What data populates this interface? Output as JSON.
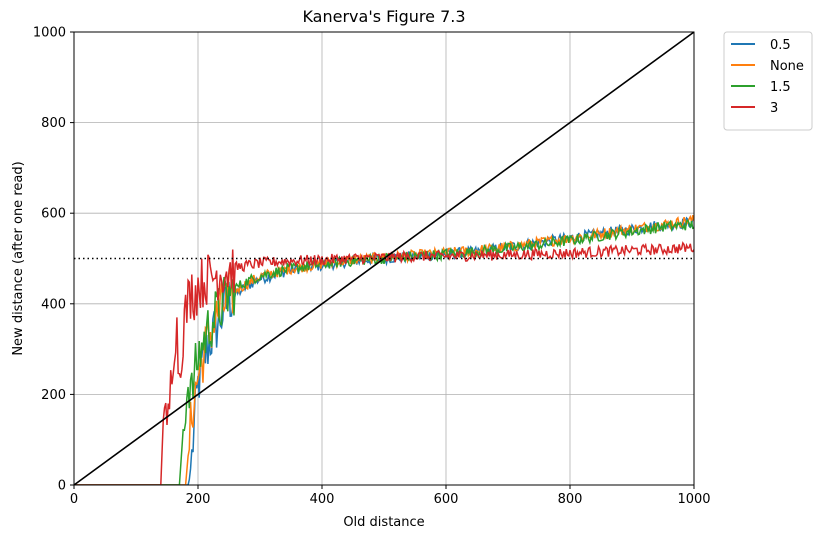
{
  "chart_data": {
    "type": "line",
    "title": "Kanerva's Figure 7.3",
    "xlabel": "Old distance",
    "ylabel": "New distance (after one read)",
    "xlim": [
      0,
      1000
    ],
    "ylim": [
      0,
      1000
    ],
    "xticks": [
      "0",
      "200",
      "400",
      "600",
      "800",
      "1000"
    ],
    "yticks": [
      "0",
      "200",
      "400",
      "600",
      "800",
      "1000"
    ],
    "grid": true,
    "legend_position": "outside-top-right",
    "reference_lines": [
      {
        "kind": "diagonal",
        "points": [
          [
            0,
            0
          ],
          [
            1000,
            1000
          ]
        ],
        "color": "#000000",
        "style": "solid"
      },
      {
        "kind": "horizontal",
        "y": 500,
        "color": "#000000",
        "style": "dotted"
      }
    ],
    "series": [
      {
        "name": "0.5",
        "color": "#1f77b4",
        "x": [
          0,
          150,
          185,
          190,
          195,
          200,
          205,
          210,
          215,
          220,
          230,
          240,
          250,
          260,
          280,
          300,
          350,
          400,
          450,
          500,
          550,
          600,
          650,
          700,
          750,
          800,
          850,
          900,
          950,
          1000
        ],
        "y": [
          0,
          0,
          0,
          60,
          150,
          220,
          250,
          280,
          300,
          320,
          350,
          380,
          410,
          420,
          440,
          455,
          475,
          485,
          495,
          500,
          505,
          510,
          515,
          525,
          535,
          545,
          555,
          565,
          575,
          580
        ]
      },
      {
        "name": "None",
        "color": "#ff7f0e",
        "x": [
          0,
          150,
          180,
          185,
          190,
          195,
          200,
          205,
          210,
          215,
          220,
          230,
          240,
          250,
          260,
          280,
          300,
          350,
          400,
          450,
          500,
          550,
          600,
          650,
          700,
          750,
          800,
          850,
          900,
          950,
          1000
        ],
        "y": [
          0,
          0,
          0,
          80,
          160,
          200,
          240,
          270,
          290,
          320,
          340,
          370,
          395,
          415,
          430,
          445,
          460,
          478,
          488,
          497,
          502,
          507,
          512,
          518,
          525,
          535,
          545,
          555,
          565,
          575,
          585
        ]
      },
      {
        "name": "1.5",
        "color": "#2ca02c",
        "x": [
          0,
          150,
          170,
          175,
          180,
          185,
          190,
          195,
          200,
          205,
          210,
          215,
          220,
          230,
          240,
          250,
          260,
          280,
          300,
          350,
          400,
          450,
          500,
          550,
          600,
          650,
          700,
          750,
          800,
          850,
          900,
          950,
          1000
        ],
        "y": [
          0,
          0,
          0,
          100,
          180,
          230,
          200,
          250,
          280,
          300,
          320,
          340,
          355,
          380,
          400,
          420,
          435,
          450,
          462,
          478,
          487,
          495,
          500,
          505,
          510,
          515,
          522,
          530,
          540,
          550,
          560,
          570,
          575
        ]
      },
      {
        "name": "3",
        "color": "#d62728",
        "x": [
          0,
          140,
          145,
          150,
          155,
          160,
          165,
          170,
          175,
          180,
          185,
          190,
          195,
          200,
          210,
          220,
          230,
          240,
          250,
          260,
          280,
          300,
          350,
          400,
          450,
          500,
          550,
          600,
          650,
          700,
          750,
          800,
          850,
          900,
          950,
          1000
        ],
        "y": [
          0,
          0,
          180,
          100,
          200,
          300,
          360,
          240,
          330,
          380,
          410,
          430,
          420,
          440,
          450,
          460,
          465,
          470,
          475,
          480,
          485,
          490,
          495,
          497,
          500,
          502,
          505,
          505,
          507,
          508,
          510,
          512,
          515,
          518,
          520,
          525
        ]
      }
    ]
  }
}
